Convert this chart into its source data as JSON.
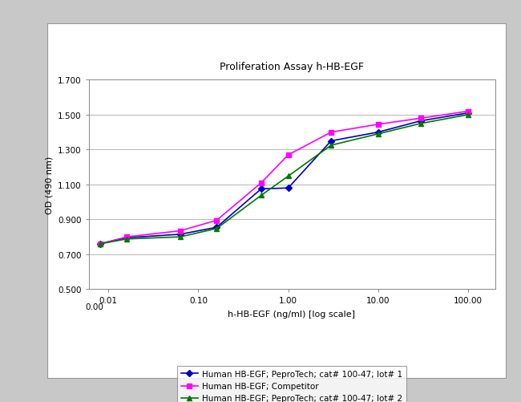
{
  "title": "Proliferation Assay h-HB-EGF",
  "xlabel": "h-HB-EGF (ng/ml) [log scale]",
  "ylabel": "OD (490 nm)",
  "ylim": [
    0.5,
    1.7
  ],
  "yticks": [
    0.5,
    0.7,
    0.9,
    1.1,
    1.3,
    1.5,
    1.7
  ],
  "ytick_labels": [
    "0.500",
    "0.700",
    "0.900",
    "1.100",
    "1.300",
    "1.500",
    "1.700"
  ],
  "xtick_positions": [
    0.01,
    0.1,
    1.0,
    10.0,
    100.0
  ],
  "xtick_labels": [
    "0.01",
    "0.10",
    "1.00",
    "10.00",
    "100.00"
  ],
  "series": [
    {
      "label": "Human HB-EGF; PeproTech; cat# 100-47; lot# 1",
      "color": "#0000BB",
      "marker": "D",
      "markersize": 4,
      "x": [
        0.008,
        0.016,
        0.063,
        0.16,
        0.5,
        1.0,
        3.0,
        10.0,
        30.0,
        100.0
      ],
      "y": [
        0.76,
        0.795,
        0.815,
        0.855,
        1.075,
        1.08,
        1.35,
        1.4,
        1.465,
        1.51
      ]
    },
    {
      "label": "Human HB-EGF; Competitor",
      "color": "#FF00FF",
      "marker": "s",
      "markersize": 4,
      "x": [
        0.008,
        0.016,
        0.063,
        0.16,
        0.5,
        1.0,
        3.0,
        10.0,
        30.0,
        100.0
      ],
      "y": [
        0.76,
        0.8,
        0.835,
        0.895,
        1.11,
        1.27,
        1.4,
        1.445,
        1.48,
        1.52
      ]
    },
    {
      "label": "Human HB-EGF; PeproTech; cat# 100-47; lot# 2",
      "color": "#007700",
      "marker": "^",
      "markersize": 4,
      "x": [
        0.008,
        0.016,
        0.063,
        0.16,
        0.5,
        1.0,
        3.0,
        10.0,
        30.0,
        100.0
      ],
      "y": [
        0.76,
        0.788,
        0.8,
        0.848,
        1.038,
        1.148,
        1.325,
        1.39,
        1.45,
        1.5
      ]
    }
  ],
  "background_color": "#ffffff",
  "plot_bg_color": "#ffffff",
  "outer_bg_color": "#c8c8c8",
  "title_fontsize": 9,
  "axis_fontsize": 8,
  "tick_fontsize": 7.5,
  "legend_fontsize": 7.5,
  "linewidth": 1.2,
  "figure_width": 6.5,
  "figure_height": 5.02
}
